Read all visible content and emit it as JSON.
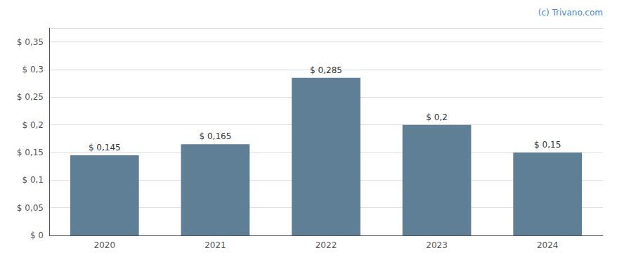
{
  "chart_data": {
    "type": "bar",
    "categories": [
      "2020",
      "2021",
      "2022",
      "2023",
      "2024"
    ],
    "values": [
      0.145,
      0.165,
      0.285,
      0.2,
      0.15
    ],
    "value_labels": [
      "$ 0,145",
      "$ 0,165",
      "$ 0,285",
      "$ 0,2",
      "$ 0,15"
    ],
    "color": "#5f7f96",
    "ylim": [
      0,
      0.375
    ],
    "yticks": [
      {
        "value": 0,
        "label": "$ 0"
      },
      {
        "value": 0.05,
        "label": "$ 0,05"
      },
      {
        "value": 0.1,
        "label": "$ 0,1"
      },
      {
        "value": 0.15,
        "label": "$ 0,15"
      },
      {
        "value": 0.2,
        "label": "$ 0,2"
      },
      {
        "value": 0.25,
        "label": "$ 0,25"
      },
      {
        "value": 0.3,
        "label": "$ 0,3"
      },
      {
        "value": 0.35,
        "label": "$ 0,35"
      }
    ],
    "grid": true,
    "annotation": "(c) Trivano.com"
  }
}
